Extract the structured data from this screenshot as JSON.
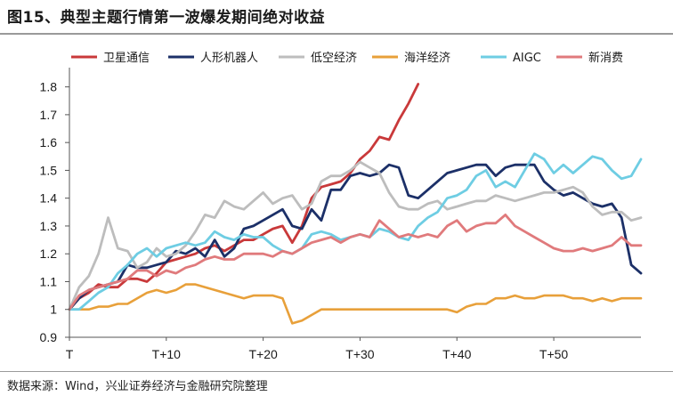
{
  "figure": {
    "title": "图15、典型主题行情第一波爆发期间绝对收益",
    "source": "数据来源：Wind，兴业证券经济与金融研究院整理"
  },
  "chart_data": {
    "type": "line",
    "title": "图15、典型主题行情第一波爆发期间绝对收益",
    "xlabel": "",
    "ylabel": "",
    "ylim": [
      0.9,
      1.85
    ],
    "xlim": [
      0,
      59
    ],
    "y_ticks": [
      0.9,
      1,
      1.1,
      1.2,
      1.3,
      1.4,
      1.5,
      1.6,
      1.7,
      1.8
    ],
    "y_tick_labels": [
      "0.9",
      "1",
      "1.1",
      "1.2",
      "1.3",
      "1.4",
      "1.5",
      "1.6",
      "1.7",
      "1.8"
    ],
    "x_ticks": [
      0,
      10,
      20,
      30,
      40,
      50
    ],
    "x_tick_labels": [
      "T",
      "T+10",
      "T+20",
      "T+30",
      "T+40",
      "T+50"
    ],
    "legend_position": "top",
    "grid": false,
    "series": [
      {
        "name": "卫星通信",
        "color": "#c9393a",
        "values": [
          1.0,
          1.04,
          1.06,
          1.09,
          1.08,
          1.08,
          1.11,
          1.11,
          1.1,
          1.13,
          1.17,
          1.18,
          1.19,
          1.2,
          1.22,
          1.23,
          1.21,
          1.23,
          1.25,
          1.25,
          1.27,
          1.29,
          1.3,
          1.24,
          1.3,
          1.4,
          1.44,
          1.45,
          1.46,
          1.49,
          1.54,
          1.57,
          1.62,
          1.61,
          1.68,
          1.74,
          1.81
        ]
      },
      {
        "name": "人形机器人",
        "color": "#1c3068",
        "values": [
          1.0,
          1.04,
          1.07,
          1.08,
          1.09,
          1.1,
          1.16,
          1.15,
          1.15,
          1.16,
          1.17,
          1.21,
          1.2,
          1.22,
          1.19,
          1.25,
          1.19,
          1.22,
          1.29,
          1.3,
          1.32,
          1.34,
          1.36,
          1.3,
          1.29,
          1.36,
          1.32,
          1.43,
          1.43,
          1.48,
          1.49,
          1.48,
          1.49,
          1.52,
          1.51,
          1.41,
          1.4,
          1.43,
          1.46,
          1.49,
          1.5,
          1.51,
          1.52,
          1.52,
          1.48,
          1.51,
          1.52,
          1.52,
          1.52,
          1.46,
          1.43,
          1.41,
          1.42,
          1.4,
          1.38,
          1.37,
          1.38,
          1.33,
          1.16,
          1.13
        ]
      },
      {
        "name": "低空经济",
        "color": "#bdbdbd",
        "values": [
          1.0,
          1.08,
          1.12,
          1.2,
          1.33,
          1.22,
          1.21,
          1.15,
          1.17,
          1.22,
          1.19,
          1.2,
          1.23,
          1.28,
          1.34,
          1.33,
          1.39,
          1.37,
          1.36,
          1.39,
          1.42,
          1.38,
          1.4,
          1.41,
          1.36,
          1.38,
          1.46,
          1.48,
          1.48,
          1.5,
          1.53,
          1.51,
          1.49,
          1.42,
          1.37,
          1.36,
          1.36,
          1.38,
          1.39,
          1.36,
          1.37,
          1.38,
          1.39,
          1.39,
          1.41,
          1.4,
          1.39,
          1.4,
          1.41,
          1.42,
          1.42,
          1.43,
          1.44,
          1.42,
          1.37,
          1.34,
          1.35,
          1.35,
          1.32,
          1.33
        ]
      },
      {
        "name": "海洋经济",
        "color": "#e8a03a",
        "values": [
          1.0,
          1.0,
          1.0,
          1.01,
          1.01,
          1.02,
          1.02,
          1.04,
          1.06,
          1.07,
          1.06,
          1.07,
          1.09,
          1.09,
          1.08,
          1.07,
          1.06,
          1.05,
          1.04,
          1.05,
          1.05,
          1.05,
          1.04,
          0.95,
          0.96,
          0.98,
          1.0,
          1.0,
          1.0,
          1.0,
          1.0,
          1.0,
          1.0,
          1.0,
          1.0,
          1.0,
          1.0,
          1.0,
          1.0,
          1.0,
          0.99,
          1.01,
          1.02,
          1.02,
          1.04,
          1.04,
          1.05,
          1.04,
          1.04,
          1.05,
          1.05,
          1.05,
          1.04,
          1.04,
          1.03,
          1.04,
          1.03,
          1.04,
          1.04,
          1.04
        ]
      },
      {
        "name": "AIGC",
        "color": "#6ecde3",
        "values": [
          1.0,
          1.0,
          1.03,
          1.06,
          1.08,
          1.13,
          1.16,
          1.2,
          1.22,
          1.19,
          1.22,
          1.23,
          1.24,
          1.23,
          1.24,
          1.28,
          1.26,
          1.25,
          1.27,
          1.26,
          1.26,
          1.23,
          1.21,
          1.2,
          1.22,
          1.27,
          1.28,
          1.27,
          1.25,
          1.26,
          1.27,
          1.26,
          1.29,
          1.28,
          1.26,
          1.25,
          1.3,
          1.33,
          1.35,
          1.4,
          1.41,
          1.43,
          1.48,
          1.5,
          1.44,
          1.46,
          1.44,
          1.5,
          1.56,
          1.54,
          1.49,
          1.52,
          1.49,
          1.52,
          1.55,
          1.54,
          1.5,
          1.47,
          1.48,
          1.54
        ]
      },
      {
        "name": "新消费",
        "color": "#e07a7c",
        "values": [
          1.0,
          1.05,
          1.07,
          1.08,
          1.09,
          1.1,
          1.11,
          1.14,
          1.14,
          1.12,
          1.14,
          1.13,
          1.15,
          1.16,
          1.18,
          1.19,
          1.18,
          1.18,
          1.2,
          1.2,
          1.2,
          1.19,
          1.21,
          1.2,
          1.22,
          1.24,
          1.25,
          1.26,
          1.24,
          1.26,
          1.27,
          1.26,
          1.32,
          1.29,
          1.26,
          1.27,
          1.26,
          1.27,
          1.26,
          1.3,
          1.32,
          1.28,
          1.3,
          1.31,
          1.31,
          1.34,
          1.3,
          1.28,
          1.26,
          1.24,
          1.22,
          1.21,
          1.21,
          1.22,
          1.21,
          1.22,
          1.23,
          1.26,
          1.23,
          1.23
        ]
      }
    ]
  }
}
